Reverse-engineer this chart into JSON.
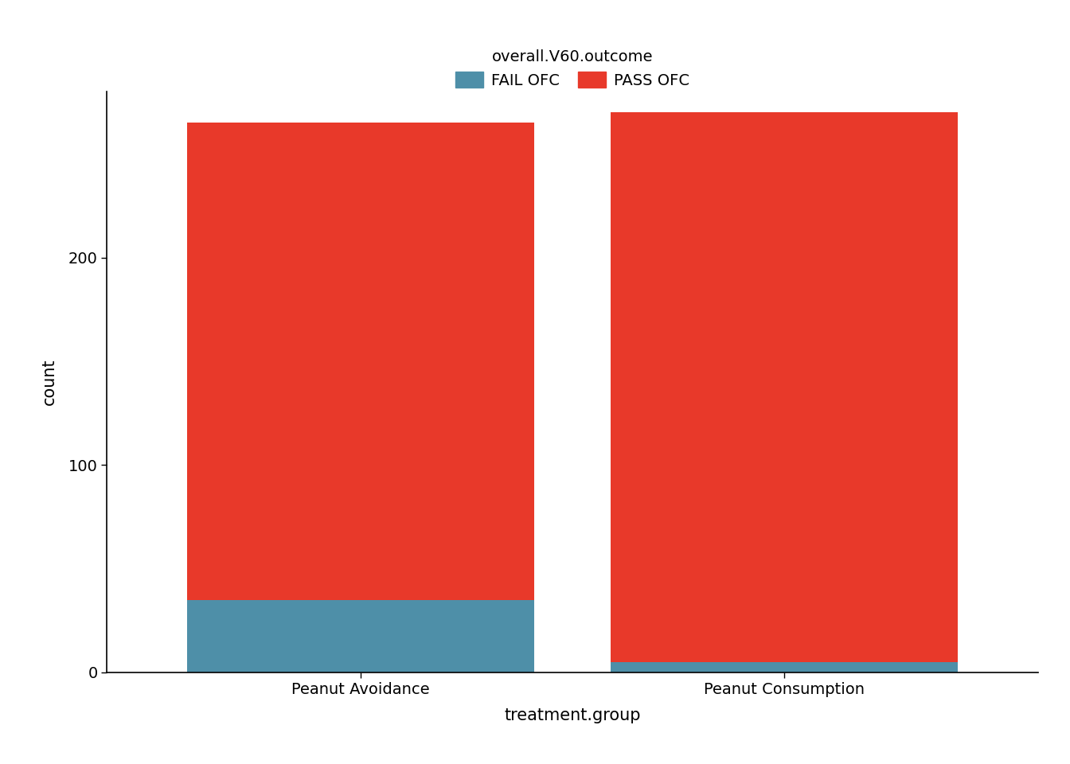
{
  "categories": [
    "Peanut Avoidance",
    "Peanut Consumption"
  ],
  "fail_counts": [
    35,
    5
  ],
  "pass_counts": [
    230,
    265
  ],
  "fail_color": "#4e8fa8",
  "pass_color": "#e8392a",
  "xlabel": "treatment.group",
  "ylabel": "count",
  "legend_title": "overall.V60.outcome",
  "legend_labels": [
    "FAIL OFC",
    "PASS OFC"
  ],
  "axis_fontsize": 15,
  "tick_fontsize": 14,
  "legend_fontsize": 14,
  "background_color": "#ffffff",
  "bar_width": 0.82,
  "ylim": [
    0,
    280
  ],
  "yticks": [
    0,
    100,
    200
  ]
}
